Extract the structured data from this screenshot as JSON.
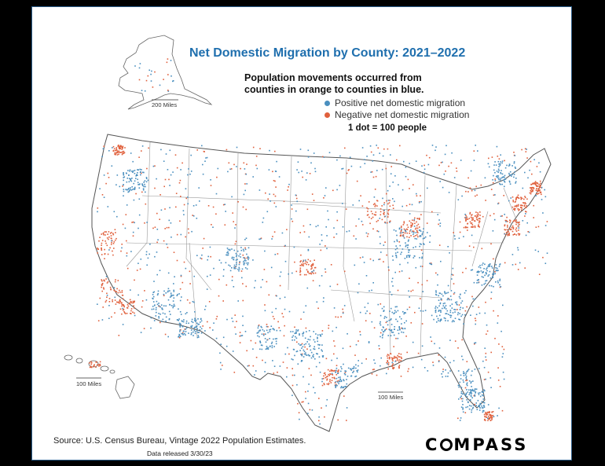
{
  "title": "Net Domestic Migration by County: 2021–2022",
  "subtitle_line1": "Population movements occurred from",
  "subtitle_line2": "counties in orange to counties in blue.",
  "legend": {
    "positive": "Positive net domestic migration",
    "negative": "Negative net domestic migration",
    "scale": "1 dot = 100 people"
  },
  "scale_bars": {
    "alaska": "200 Miles",
    "hawaii": "100 Miles",
    "contiguous": "100 Miles"
  },
  "source": "Source: U.S. Census Bureau, Vintage 2022 Population Estimates.",
  "released": "Data released 3/30/23",
  "logo": {
    "before": "C",
    "after": "MPASS"
  },
  "colors": {
    "positive": "#4a8fbf",
    "negative": "#e0603c",
    "title": "#1f6fae",
    "border": "#2b5d8a"
  }
}
